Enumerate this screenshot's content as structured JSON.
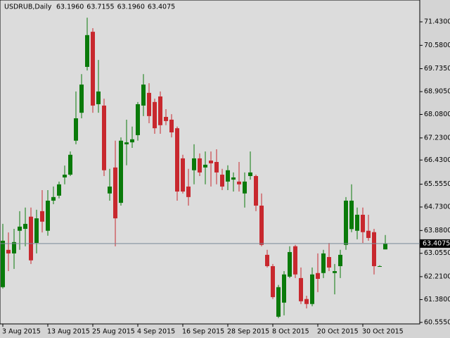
{
  "chart_data": {
    "type": "candlestick",
    "title": "USDRUB,Daily",
    "header_values": [
      "63.1960",
      "63.7155",
      "63.1960",
      "63.4075"
    ],
    "categories": [
      "3 Aug 2015",
      null,
      null,
      null,
      null,
      null,
      null,
      null,
      "13 Aug 2015",
      null,
      null,
      null,
      null,
      null,
      null,
      null,
      "25 Aug 2015",
      null,
      null,
      null,
      null,
      null,
      null,
      null,
      "4 Sep 2015",
      null,
      null,
      null,
      null,
      null,
      null,
      null,
      "16 Sep 2015",
      null,
      null,
      null,
      null,
      null,
      null,
      null,
      "28 Sep 2015",
      null,
      null,
      null,
      null,
      null,
      null,
      null,
      "8 Oct 2015",
      null,
      null,
      null,
      null,
      null,
      null,
      null,
      "20 Oct 2015",
      null,
      null,
      null,
      null,
      null,
      null,
      null,
      "30 Oct 2015",
      null,
      null,
      null,
      null
    ],
    "open": [
      61.83,
      63.18,
      63.05,
      63.87,
      63.94,
      64.38,
      63.43,
      64.58,
      63.87,
      64.96,
      65.14,
      65.8,
      65.9,
      67.13,
      68.14,
      69.8,
      71.07,
      68.45,
      68.4,
      65.22,
      66.16,
      64.88,
      67.0,
      67.07,
      67.33,
      68.4,
      68.86,
      68.53,
      68.73,
      67.99,
      67.89,
      67.58,
      66.49,
      65.47,
      66.06,
      66.49,
      66.16,
      66.41,
      66.36,
      65.9,
      65.65,
      65.72,
      65.65,
      65.22,
      65.85,
      65.85,
      64.78,
      63.0,
      62.59,
      60.76,
      61.27,
      62.21,
      63.31,
      62.16,
      61.4,
      61.22,
      62.34,
      62.34,
      62.92,
      62.34,
      62.59,
      63.36,
      63.93,
      63.87,
      64.45,
      63.87,
      63.82,
      62.59,
      63.196
    ],
    "high": [
      64.12,
      63.81,
      63.94,
      64.58,
      64.71,
      64.71,
      64.63,
      65.34,
      65.34,
      65.47,
      65.65,
      66.23,
      66.74,
      68.91,
      69.54,
      71.58,
      71.2,
      70.05,
      68.65,
      66.11,
      67.13,
      67.25,
      67.89,
      67.64,
      68.53,
      69.54,
      69.21,
      68.65,
      68.91,
      68.27,
      68.09,
      67.64,
      66.62,
      66.11,
      67.0,
      66.67,
      66.74,
      66.74,
      66.82,
      66.11,
      66.24,
      65.98,
      66.36,
      65.98,
      66.74,
      65.9,
      65.22,
      63.18,
      62.67,
      61.91,
      62.41,
      63.31,
      63.36,
      62.54,
      61.52,
      62.54,
      63.05,
      63.18,
      63.43,
      62.67,
      63.18,
      65.09,
      65.55,
      64.71,
      64.71,
      64.45,
      63.94,
      62.62,
      63.7155
    ],
    "low": [
      61.78,
      62.41,
      62.49,
      63.18,
      63.31,
      62.67,
      63.05,
      63.81,
      63.69,
      64.83,
      65.04,
      65.55,
      65.85,
      67.0,
      67.94,
      69.67,
      68.14,
      68.14,
      65.85,
      64.96,
      63.31,
      64.78,
      66.24,
      66.87,
      67.13,
      68.02,
      67.76,
      67.38,
      67.38,
      67.69,
      67.25,
      64.96,
      65.22,
      64.78,
      65.55,
      65.85,
      65.55,
      65.47,
      65.55,
      65.34,
      65.34,
      65.29,
      65.29,
      64.71,
      65.72,
      64.58,
      63.31,
      62.54,
      61.4,
      60.71,
      60.81,
      62.16,
      62.16,
      61.22,
      61.06,
      61.14,
      61.65,
      62.16,
      62.41,
      61.57,
      62.16,
      63.18,
      63.82,
      63.56,
      63.43,
      63.51,
      62.29,
      62.57,
      63.196
    ],
    "close": [
      63.51,
      63.05,
      63.46,
      64.02,
      64.12,
      62.8,
      64.32,
      64.2,
      64.96,
      65.09,
      65.55,
      65.9,
      66.62,
      67.94,
      69.16,
      70.95,
      68.4,
      68.91,
      66.06,
      65.47,
      64.32,
      67.13,
      67.07,
      67.18,
      68.45,
      69.16,
      68.02,
      67.58,
      67.69,
      67.84,
      67.43,
      65.29,
      65.29,
      65.09,
      66.49,
      65.98,
      66.26,
      66.31,
      65.98,
      65.47,
      66.06,
      65.8,
      65.55,
      65.65,
      65.98,
      64.78,
      63.36,
      62.59,
      61.47,
      61.83,
      62.29,
      63.1,
      62.29,
      61.32,
      61.22,
      62.29,
      62.13,
      63.05,
      62.54,
      62.41,
      63.0,
      64.96,
      64.96,
      64.45,
      63.82,
      63.61,
      62.59,
      62.59,
      63.4075
    ],
    "up_color": "#0a7a0a",
    "down_color": "#c8282e",
    "current_price": {
      "value": 63.4075,
      "label": "63.4075"
    },
    "ylim": [
      60.5,
      72.22
    ],
    "yticks": [
      {
        "value": 71.43,
        "label": "71.4300"
      },
      {
        "value": 70.58,
        "label": "70.5800"
      },
      {
        "value": 69.735,
        "label": "69.7350"
      },
      {
        "value": 68.905,
        "label": "68.9050"
      },
      {
        "value": 68.08,
        "label": "68.0800"
      },
      {
        "value": 67.23,
        "label": "67.2300"
      },
      {
        "value": 66.43,
        "label": "66.4300"
      },
      {
        "value": 65.555,
        "label": "65.5550"
      },
      {
        "value": 64.73,
        "label": "64.7300"
      },
      {
        "value": 63.88,
        "label": "63.8800"
      },
      {
        "value": 63.055,
        "label": "63.0550"
      },
      {
        "value": 62.21,
        "label": "62.2100"
      },
      {
        "value": 61.38,
        "label": "61.3800"
      },
      {
        "value": 60.555,
        "label": "60.5550"
      }
    ]
  }
}
